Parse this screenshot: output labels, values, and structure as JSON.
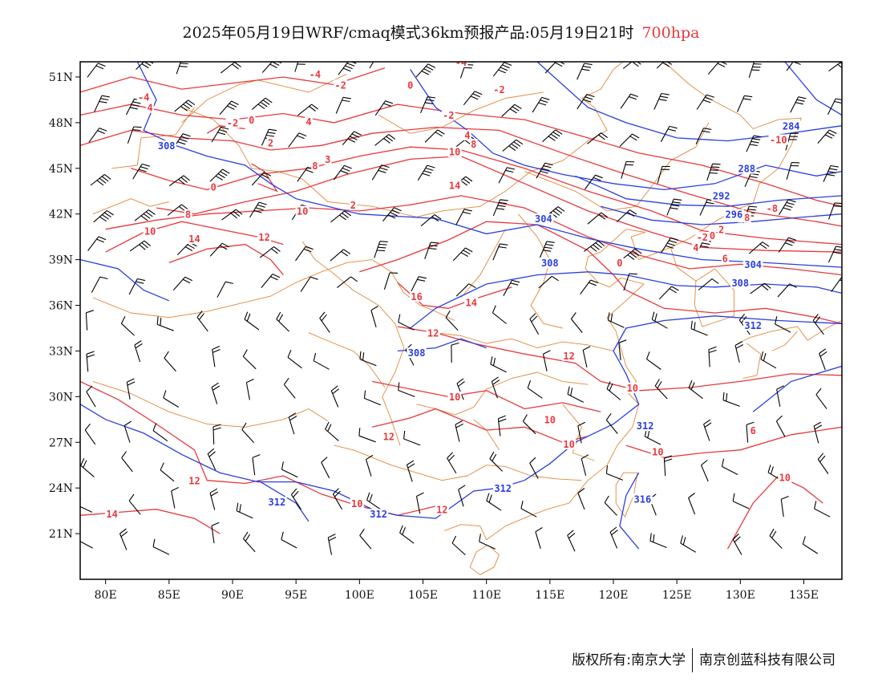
{
  "title": {
    "main": "2025年05月19日WRF/cmaq模式36km预报产品:05月19日21时",
    "level": "700hpa"
  },
  "footer": {
    "left": "版权所有:南京大学",
    "right": "南京创蓝科技有限公司"
  },
  "axes": {
    "lat_ticks": [
      "51N",
      "48N",
      "45N",
      "42N",
      "39N",
      "36N",
      "33N",
      "30N",
      "27N",
      "24N",
      "21N"
    ],
    "lon_ticks": [
      "80E",
      "85E",
      "90E",
      "95E",
      "100E",
      "105E",
      "110E",
      "115E",
      "120E",
      "125E",
      "130E",
      "135E"
    ],
    "lon_range": [
      78,
      138
    ],
    "lat_range": [
      18,
      52
    ]
  },
  "colors": {
    "temperature_contour": "#e8383d",
    "height_contour": "#2a3fe0",
    "boundary": "#e0883a",
    "wind_barb": "#000000"
  },
  "temperature_labels": [
    {
      "text": "-4",
      "lon": 83.0,
      "lat": 49.5
    },
    {
      "text": "4",
      "lon": 83.5,
      "lat": 48.8
    },
    {
      "text": "-4",
      "lon": 96.5,
      "lat": 51.0
    },
    {
      "text": "-2",
      "lon": 98.5,
      "lat": 50.3
    },
    {
      "text": "-4",
      "lon": 108.0,
      "lat": 51.8
    },
    {
      "text": "0",
      "lon": 104.0,
      "lat": 50.3
    },
    {
      "text": "-2",
      "lon": 111.0,
      "lat": 50.0
    },
    {
      "text": "-2",
      "lon": 107.0,
      "lat": 48.3
    },
    {
      "text": "-2",
      "lon": 90.0,
      "lat": 47.8
    },
    {
      "text": "0",
      "lon": 91.5,
      "lat": 48.0
    },
    {
      "text": "4",
      "lon": 96.0,
      "lat": 47.9
    },
    {
      "text": "4",
      "lon": 108.5,
      "lat": 47.0
    },
    {
      "text": "2",
      "lon": 93.0,
      "lat": 46.5
    },
    {
      "text": "8",
      "lon": 109.0,
      "lat": 46.4
    },
    {
      "text": "10",
      "lon": 107.5,
      "lat": 45.9
    },
    {
      "text": "3",
      "lon": 97.5,
      "lat": 45.4
    },
    {
      "text": "8",
      "lon": 96.5,
      "lat": 45.0
    },
    {
      "text": "0",
      "lon": 88.5,
      "lat": 43.6
    },
    {
      "text": "14",
      "lon": 107.5,
      "lat": 43.7
    },
    {
      "text": "2",
      "lon": 99.5,
      "lat": 42.4
    },
    {
      "text": "8",
      "lon": 86.5,
      "lat": 41.8
    },
    {
      "text": "10",
      "lon": 95.5,
      "lat": 42.0
    },
    {
      "text": "10",
      "lon": 83.5,
      "lat": 40.7
    },
    {
      "text": "14",
      "lon": 87.0,
      "lat": 40.2
    },
    {
      "text": "12",
      "lon": 92.5,
      "lat": 40.3
    },
    {
      "text": "16",
      "lon": 104.5,
      "lat": 36.4
    },
    {
      "text": "14",
      "lon": 108.8,
      "lat": 36.0
    },
    {
      "text": "12",
      "lon": 105.8,
      "lat": 34.0
    },
    {
      "text": "12",
      "lon": 116.5,
      "lat": 32.5
    },
    {
      "text": "10",
      "lon": 107.5,
      "lat": 29.8
    },
    {
      "text": "10",
      "lon": 121.5,
      "lat": 30.4
    },
    {
      "text": "10",
      "lon": 115.0,
      "lat": 28.3
    },
    {
      "text": "12",
      "lon": 102.3,
      "lat": 27.2
    },
    {
      "text": "10",
      "lon": 116.5,
      "lat": 26.7
    },
    {
      "text": "10",
      "lon": 123.5,
      "lat": 26.2
    },
    {
      "text": "12",
      "lon": 87.0,
      "lat": 24.3
    },
    {
      "text": "10",
      "lon": 99.8,
      "lat": 22.8
    },
    {
      "text": "12",
      "lon": 106.5,
      "lat": 22.4
    },
    {
      "text": "14",
      "lon": 80.5,
      "lat": 22.1
    },
    {
      "text": "-10",
      "lon": 133.0,
      "lat": 46.7
    },
    {
      "text": "-8",
      "lon": 130.3,
      "lat": 41.6
    },
    {
      "text": "-8",
      "lon": 132.5,
      "lat": 42.2
    },
    {
      "text": "-2",
      "lon": 127.0,
      "lat": 40.3
    },
    {
      "text": "0",
      "lon": 127.8,
      "lat": 40.4
    },
    {
      "text": "2",
      "lon": 128.5,
      "lat": 40.8
    },
    {
      "text": "4",
      "lon": 126.5,
      "lat": 39.6
    },
    {
      "text": "6",
      "lon": 128.8,
      "lat": 38.9
    },
    {
      "text": "0",
      "lon": 120.5,
      "lat": 38.6
    },
    {
      "text": "6",
      "lon": 131.0,
      "lat": 27.6
    },
    {
      "text": "10",
      "lon": 133.5,
      "lat": 24.5
    }
  ],
  "height_labels": [
    {
      "text": "308",
      "lon": 84.8,
      "lat": 46.3
    },
    {
      "text": "284",
      "lon": 134.0,
      "lat": 47.6
    },
    {
      "text": "288",
      "lon": 130.5,
      "lat": 44.8
    },
    {
      "text": "292",
      "lon": 128.5,
      "lat": 43.0
    },
    {
      "text": "296",
      "lon": 129.5,
      "lat": 41.8
    },
    {
      "text": "304",
      "lon": 114.5,
      "lat": 41.5
    },
    {
      "text": "304",
      "lon": 131.0,
      "lat": 38.5
    },
    {
      "text": "308",
      "lon": 115.0,
      "lat": 38.6
    },
    {
      "text": "308",
      "lon": 130.0,
      "lat": 37.3
    },
    {
      "text": "312",
      "lon": 131.0,
      "lat": 34.5
    },
    {
      "text": "308",
      "lon": 104.5,
      "lat": 32.7
    },
    {
      "text": "312",
      "lon": 122.5,
      "lat": 27.9
    },
    {
      "text": "316",
      "lon": 122.3,
      "lat": 23.1
    },
    {
      "text": "312",
      "lon": 111.3,
      "lat": 23.8
    },
    {
      "text": "312",
      "lon": 93.5,
      "lat": 22.9
    },
    {
      "text": "312",
      "lon": 101.5,
      "lat": 22.1
    }
  ]
}
